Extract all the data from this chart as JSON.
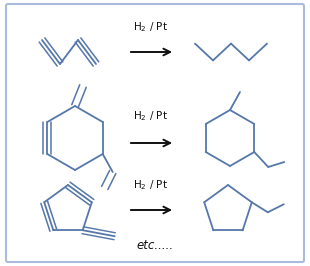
{
  "background_color": "#ffffff",
  "border_color": "#aabbdd",
  "border_linewidth": 1.5,
  "line_color": "#5577aa",
  "line_width": 1.3,
  "arrow_color": "#111111",
  "text_color": "#111111",
  "reagent_text": "H$_2$ / Pt",
  "reagent_fontsize": 7.5,
  "etc_text": "etc.....",
  "etc_fontsize": 8.5
}
